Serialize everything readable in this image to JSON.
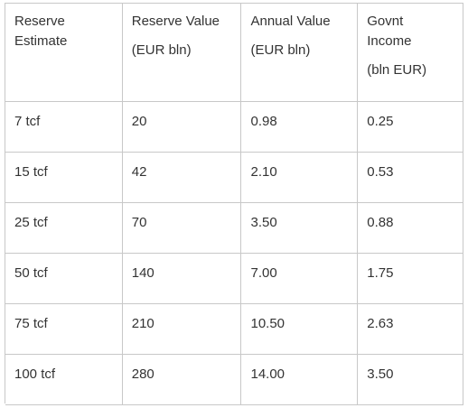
{
  "table": {
    "headers": [
      {
        "line1": "Reserve",
        "line2": "Estimate",
        "unit": ""
      },
      {
        "line1": "Reserve Value",
        "line2": "",
        "unit": "(EUR bln)"
      },
      {
        "line1": "Annual Value",
        "line2": "",
        "unit": "(EUR bln)"
      },
      {
        "line1": "Govnt",
        "line2": "Income",
        "unit": "(bln EUR)"
      }
    ],
    "rows": [
      [
        "7 tcf",
        "20",
        "0.98",
        "0.25"
      ],
      [
        "15 tcf",
        "42",
        "2.10",
        "0.53"
      ],
      [
        "25 tcf",
        "70",
        "3.50",
        "0.88"
      ],
      [
        "50 tcf",
        "140",
        "7.00",
        "1.75"
      ],
      [
        "75 tcf",
        "210",
        "10.50",
        "2.63"
      ],
      [
        "100 tcf",
        "280",
        "14.00",
        "3.50"
      ]
    ]
  }
}
